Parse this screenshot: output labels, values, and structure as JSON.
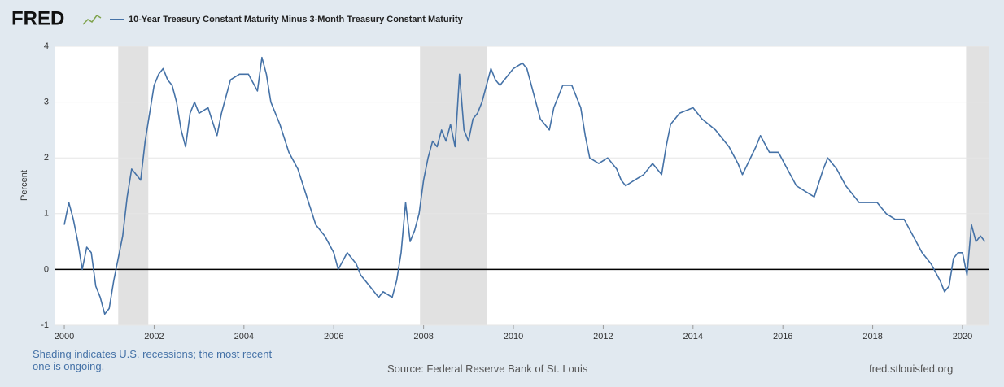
{
  "header": {
    "logo": "FRED"
  },
  "footer": {
    "note": "Shading indicates U.S. recessions; the most recent one is ongoing.",
    "source": "Source: Federal Reserve Bank of St. Louis",
    "site": "fred.stlouisfed.org"
  },
  "chart_data": {
    "type": "line",
    "y_label": "Percent",
    "x": [
      2000.0,
      2000.1,
      2000.2,
      2000.3,
      2000.4,
      2000.5,
      2000.6,
      2000.7,
      2000.8,
      2000.9,
      2001.0,
      2001.1,
      2001.2,
      2001.3,
      2001.4,
      2001.5,
      2001.6,
      2001.7,
      2001.8,
      2001.9,
      2002.0,
      2002.1,
      2002.2,
      2002.3,
      2002.4,
      2002.5,
      2002.6,
      2002.7,
      2002.8,
      2002.9,
      2003.0,
      2003.2,
      2003.4,
      2003.5,
      2003.7,
      2003.9,
      2004.1,
      2004.3,
      2004.4,
      2004.5,
      2004.6,
      2004.8,
      2005.0,
      2005.2,
      2005.4,
      2005.6,
      2005.8,
      2006.0,
      2006.1,
      2006.3,
      2006.5,
      2006.6,
      2006.8,
      2007.0,
      2007.1,
      2007.3,
      2007.4,
      2007.5,
      2007.6,
      2007.7,
      2007.8,
      2007.9,
      2008.0,
      2008.1,
      2008.2,
      2008.3,
      2008.4,
      2008.5,
      2008.6,
      2008.7,
      2008.8,
      2008.9,
      2009.0,
      2009.1,
      2009.2,
      2009.3,
      2009.4,
      2009.5,
      2009.6,
      2009.7,
      2009.9,
      2010.0,
      2010.2,
      2010.3,
      2010.5,
      2010.6,
      2010.8,
      2010.9,
      2011.1,
      2011.3,
      2011.4,
      2011.5,
      2011.6,
      2011.7,
      2011.9,
      2012.1,
      2012.3,
      2012.4,
      2012.5,
      2012.7,
      2012.9,
      2013.1,
      2013.3,
      2013.4,
      2013.5,
      2013.7,
      2014.0,
      2014.2,
      2014.5,
      2014.8,
      2015.0,
      2015.1,
      2015.4,
      2015.5,
      2015.7,
      2015.9,
      2016.1,
      2016.3,
      2016.5,
      2016.7,
      2016.9,
      2017.0,
      2017.2,
      2017.4,
      2017.5,
      2017.7,
      2017.9,
      2018.1,
      2018.3,
      2018.5,
      2018.7,
      2018.9,
      2019.1,
      2019.3,
      2019.5,
      2019.6,
      2019.7,
      2019.8,
      2019.9,
      2020.0,
      2020.1,
      2020.2,
      2020.3,
      2020.4,
      2020.5
    ],
    "series": [
      {
        "name": "10-Year Treasury Constant Maturity Minus 3-Month Treasury Constant Maturity",
        "color": "#4572a7",
        "values": [
          0.8,
          1.2,
          0.9,
          0.5,
          0.0,
          0.4,
          0.3,
          -0.3,
          -0.5,
          -0.8,
          -0.7,
          -0.2,
          0.2,
          0.6,
          1.3,
          1.8,
          1.7,
          1.6,
          2.3,
          2.8,
          3.3,
          3.5,
          3.6,
          3.4,
          3.3,
          3.0,
          2.5,
          2.2,
          2.8,
          3.0,
          2.8,
          2.9,
          2.4,
          2.8,
          3.4,
          3.5,
          3.5,
          3.2,
          3.8,
          3.5,
          3.0,
          2.6,
          2.1,
          1.8,
          1.3,
          0.8,
          0.6,
          0.3,
          0.0,
          0.3,
          0.1,
          -0.1,
          -0.3,
          -0.5,
          -0.4,
          -0.5,
          -0.2,
          0.3,
          1.2,
          0.5,
          0.7,
          1.0,
          1.6,
          2.0,
          2.3,
          2.2,
          2.5,
          2.3,
          2.6,
          2.2,
          3.5,
          2.5,
          2.3,
          2.7,
          2.8,
          3.0,
          3.3,
          3.6,
          3.4,
          3.3,
          3.5,
          3.6,
          3.7,
          3.6,
          3.0,
          2.7,
          2.5,
          2.9,
          3.3,
          3.3,
          3.1,
          2.9,
          2.4,
          2.0,
          1.9,
          2.0,
          1.8,
          1.6,
          1.5,
          1.6,
          1.7,
          1.9,
          1.7,
          2.2,
          2.6,
          2.8,
          2.9,
          2.7,
          2.5,
          2.2,
          1.9,
          1.7,
          2.2,
          2.4,
          2.1,
          2.1,
          1.8,
          1.5,
          1.4,
          1.3,
          1.8,
          2.0,
          1.8,
          1.5,
          1.4,
          1.2,
          1.2,
          1.2,
          1.0,
          0.9,
          0.9,
          0.6,
          0.3,
          0.1,
          -0.2,
          -0.4,
          -0.3,
          0.2,
          0.3,
          0.3,
          -0.1,
          0.8,
          0.5,
          0.6,
          0.5
        ]
      }
    ],
    "recessions": [
      [
        2001.2,
        2001.87
      ],
      [
        2007.92,
        2009.42
      ],
      [
        2020.08,
        2020.58
      ]
    ],
    "recession_color": "#e1e1e1",
    "xlim": [
      1999.8,
      2020.58
    ],
    "xticks": [
      2000,
      2002,
      2004,
      2006,
      2008,
      2010,
      2012,
      2014,
      2016,
      2018,
      2020
    ],
    "ylim": [
      -1,
      4
    ],
    "yticks": [
      -1,
      0,
      1,
      2,
      3,
      4
    ],
    "grid": true
  }
}
